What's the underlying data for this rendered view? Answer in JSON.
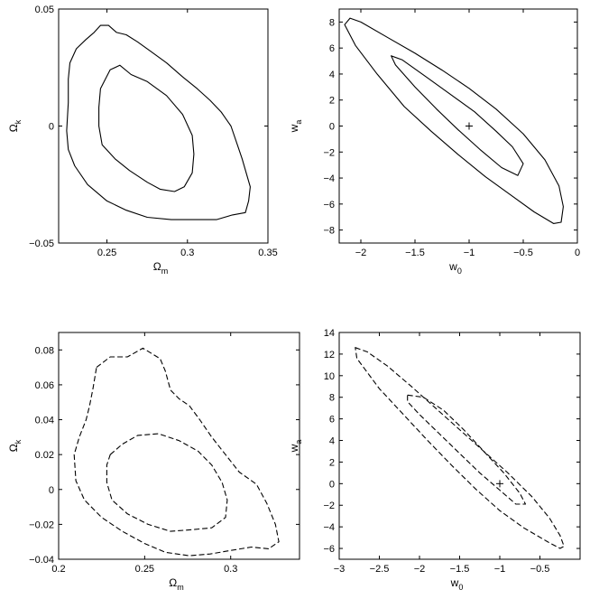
{
  "chart_data": [
    {
      "type": "contour",
      "xlabel": "Ω",
      "xlabel_sub": "m",
      "ylabel": "Ω",
      "ylabel_sub": "k",
      "xlim": [
        0.22,
        0.35
      ],
      "ylim": [
        -0.05,
        0.05
      ],
      "xticks": [
        0.25,
        0.3,
        0.35
      ],
      "xtick_labels": [
        "0.25",
        "0.3",
        "0.35"
      ],
      "yticks": [
        -0.05,
        0,
        0.05
      ],
      "ytick_labels": [
        "−0.05",
        "0",
        "0.05"
      ],
      "line_style": "solid",
      "contours": [
        {
          "level": "outer",
          "points": [
            [
              0.227,
              0.027
            ],
            [
              0.231,
              0.033
            ],
            [
              0.237,
              0.037
            ],
            [
              0.242,
              0.04
            ],
            [
              0.246,
              0.043
            ],
            [
              0.251,
              0.043
            ],
            [
              0.256,
              0.04
            ],
            [
              0.262,
              0.039
            ],
            [
              0.269,
              0.036
            ],
            [
              0.277,
              0.032
            ],
            [
              0.287,
              0.027
            ],
            [
              0.297,
              0.021
            ],
            [
              0.306,
              0.016
            ],
            [
              0.314,
              0.011
            ],
            [
              0.321,
              0.006
            ],
            [
              0.327,
              0.0
            ],
            [
              0.331,
              -0.008
            ],
            [
              0.334,
              -0.014
            ],
            [
              0.339,
              -0.026
            ],
            [
              0.338,
              -0.032
            ],
            [
              0.336,
              -0.037
            ],
            [
              0.328,
              -0.038
            ],
            [
              0.318,
              -0.04
            ],
            [
              0.305,
              -0.04
            ],
            [
              0.29,
              -0.04
            ],
            [
              0.275,
              -0.039
            ],
            [
              0.262,
              -0.036
            ],
            [
              0.25,
              -0.032
            ],
            [
              0.238,
              -0.025
            ],
            [
              0.23,
              -0.017
            ],
            [
              0.226,
              -0.01
            ],
            [
              0.225,
              -0.002
            ],
            [
              0.226,
              0.01
            ],
            [
              0.226,
              0.02
            ],
            [
              0.227,
              0.027
            ]
          ]
        },
        {
          "level": "inner",
          "points": [
            [
              0.246,
              0.016
            ],
            [
              0.252,
              0.024
            ],
            [
              0.258,
              0.026
            ],
            [
              0.265,
              0.022
            ],
            [
              0.275,
              0.019
            ],
            [
              0.287,
              0.013
            ],
            [
              0.297,
              0.005
            ],
            [
              0.303,
              -0.004
            ],
            [
              0.304,
              -0.012
            ],
            [
              0.303,
              -0.02
            ],
            [
              0.298,
              -0.026
            ],
            [
              0.292,
              -0.028
            ],
            [
              0.283,
              -0.027
            ],
            [
              0.275,
              -0.024
            ],
            [
              0.264,
              -0.019
            ],
            [
              0.255,
              -0.014
            ],
            [
              0.247,
              -0.008
            ],
            [
              0.245,
              0.0
            ],
            [
              0.245,
              0.008
            ],
            [
              0.246,
              0.016
            ]
          ]
        }
      ]
    },
    {
      "type": "contour",
      "xlabel": "w",
      "xlabel_sub": "0",
      "ylabel": "w",
      "ylabel_sub": "a",
      "xlim": [
        -2.2,
        0.0
      ],
      "ylim": [
        -9,
        9
      ],
      "xticks": [
        -2,
        -1.5,
        -1,
        -0.5,
        0
      ],
      "xtick_labels": [
        "−2",
        "−1.5",
        "−1",
        "−0.5",
        "0"
      ],
      "yticks": [
        -8,
        -6,
        -4,
        -2,
        0,
        2,
        4,
        6,
        8
      ],
      "ytick_labels": [
        "−8",
        "−6",
        "−4",
        "−2",
        "0",
        "2",
        "4",
        "6",
        "8"
      ],
      "line_style": "solid",
      "marker": {
        "symbol": "+",
        "x": -1,
        "y": 0
      },
      "contours": [
        {
          "level": "outer",
          "points": [
            [
              -2.1,
              8.3
            ],
            [
              -2.0,
              8.0
            ],
            [
              -1.75,
              6.8
            ],
            [
              -1.5,
              5.6
            ],
            [
              -1.25,
              4.3
            ],
            [
              -1.0,
              2.9
            ],
            [
              -0.75,
              1.3
            ],
            [
              -0.5,
              -0.6
            ],
            [
              -0.3,
              -2.6
            ],
            [
              -0.17,
              -4.6
            ],
            [
              -0.13,
              -6.2
            ],
            [
              -0.15,
              -7.4
            ],
            [
              -0.22,
              -7.5
            ],
            [
              -0.4,
              -6.6
            ],
            [
              -0.6,
              -5.4
            ],
            [
              -0.85,
              -3.9
            ],
            [
              -1.1,
              -2.2
            ],
            [
              -1.35,
              -0.4
            ],
            [
              -1.6,
              1.5
            ],
            [
              -1.85,
              4.0
            ],
            [
              -2.05,
              6.2
            ],
            [
              -2.15,
              7.8
            ],
            [
              -2.1,
              8.3
            ]
          ]
        },
        {
          "level": "inner",
          "points": [
            [
              -1.72,
              5.4
            ],
            [
              -1.62,
              5.1
            ],
            [
              -1.4,
              3.8
            ],
            [
              -1.2,
              2.6
            ],
            [
              -0.95,
              1.1
            ],
            [
              -0.75,
              -0.4
            ],
            [
              -0.6,
              -1.6
            ],
            [
              -0.5,
              -2.9
            ],
            [
              -0.55,
              -3.8
            ],
            [
              -0.7,
              -3.2
            ],
            [
              -0.9,
              -1.8
            ],
            [
              -1.1,
              -0.3
            ],
            [
              -1.3,
              1.3
            ],
            [
              -1.5,
              3.0
            ],
            [
              -1.68,
              4.7
            ],
            [
              -1.72,
              5.4
            ]
          ]
        }
      ]
    },
    {
      "type": "contour",
      "xlabel": "Ω",
      "xlabel_sub": "m",
      "ylabel": "Ω",
      "ylabel_sub": "k",
      "xlim": [
        0.2,
        0.34
      ],
      "ylim": [
        -0.04,
        0.09
      ],
      "xticks": [
        0.2,
        0.25,
        0.3
      ],
      "xtick_labels": [
        "0.2",
        "0.25",
        "0.3"
      ],
      "yticks": [
        -0.04,
        -0.02,
        0,
        0.02,
        0.04,
        0.06,
        0.08
      ],
      "ytick_labels": [
        "−0.04",
        "−0.02",
        "0",
        "0.02",
        "0.04",
        "0.06",
        "0.08"
      ],
      "line_style": "dashed",
      "contours": [
        {
          "level": "outer",
          "points": [
            [
              0.222,
              0.07
            ],
            [
              0.23,
              0.076
            ],
            [
              0.24,
              0.076
            ],
            [
              0.249,
              0.081
            ],
            [
              0.254,
              0.078
            ],
            [
              0.259,
              0.075
            ],
            [
              0.262,
              0.068
            ],
            [
              0.265,
              0.057
            ],
            [
              0.27,
              0.052
            ],
            [
              0.276,
              0.048
            ],
            [
              0.282,
              0.04
            ],
            [
              0.289,
              0.03
            ],
            [
              0.297,
              0.02
            ],
            [
              0.305,
              0.01
            ],
            [
              0.315,
              0.003
            ],
            [
              0.321,
              -0.008
            ],
            [
              0.326,
              -0.02
            ],
            [
              0.328,
              -0.03
            ],
            [
              0.322,
              -0.034
            ],
            [
              0.312,
              -0.033
            ],
            [
              0.3,
              -0.035
            ],
            [
              0.288,
              -0.037
            ],
            [
              0.276,
              -0.038
            ],
            [
              0.262,
              -0.036
            ],
            [
              0.25,
              -0.031
            ],
            [
              0.237,
              -0.024
            ],
            [
              0.225,
              -0.016
            ],
            [
              0.215,
              -0.006
            ],
            [
              0.21,
              0.005
            ],
            [
              0.209,
              0.02
            ],
            [
              0.212,
              0.03
            ],
            [
              0.216,
              0.04
            ],
            [
              0.218,
              0.048
            ],
            [
              0.22,
              0.058
            ],
            [
              0.222,
              0.07
            ]
          ]
        },
        {
          "level": "inner",
          "points": [
            [
              0.23,
              0.02
            ],
            [
              0.237,
              0.026
            ],
            [
              0.246,
              0.031
            ],
            [
              0.258,
              0.032
            ],
            [
              0.27,
              0.028
            ],
            [
              0.281,
              0.022
            ],
            [
              0.289,
              0.014
            ],
            [
              0.295,
              0.004
            ],
            [
              0.298,
              -0.006
            ],
            [
              0.297,
              -0.016
            ],
            [
              0.289,
              -0.022
            ],
            [
              0.278,
              -0.023
            ],
            [
              0.265,
              -0.024
            ],
            [
              0.252,
              -0.02
            ],
            [
              0.24,
              -0.014
            ],
            [
              0.231,
              -0.006
            ],
            [
              0.228,
              0.004
            ],
            [
              0.228,
              0.014
            ],
            [
              0.23,
              0.02
            ]
          ]
        }
      ]
    },
    {
      "type": "contour",
      "xlabel": "w",
      "xlabel_sub": "0",
      "ylabel": "w",
      "ylabel_sub": "a",
      "xlim": [
        -3.0,
        0.0
      ],
      "ylim": [
        -7,
        14
      ],
      "xticks": [
        -3,
        -2.5,
        -2,
        -1.5,
        -1,
        -0.5
      ],
      "xtick_labels": [
        "−3",
        "−2.5",
        "−2",
        "−1.5",
        "−1",
        "−0.5"
      ],
      "yticks": [
        -6,
        -4,
        -2,
        0,
        2,
        4,
        6,
        8,
        10,
        12,
        14
      ],
      "ytick_labels": [
        "−6",
        "−4",
        "−2",
        "0",
        "2",
        "4",
        "6",
        "8",
        "10",
        "12",
        "14"
      ],
      "line_style": "dashed",
      "marker": {
        "symbol": "+",
        "x": -1,
        "y": 0
      },
      "contours": [
        {
          "level": "outer",
          "points": [
            [
              -2.8,
              12.6
            ],
            [
              -2.65,
              12.2
            ],
            [
              -2.4,
              10.9
            ],
            [
              -2.1,
              9.0
            ],
            [
              -1.8,
              7.0
            ],
            [
              -1.5,
              5.0
            ],
            [
              -1.2,
              3.0
            ],
            [
              -0.9,
              1.0
            ],
            [
              -0.6,
              -1.2
            ],
            [
              -0.38,
              -3.2
            ],
            [
              -0.25,
              -4.8
            ],
            [
              -0.2,
              -5.8
            ],
            [
              -0.25,
              -6.0
            ],
            [
              -0.4,
              -5.4
            ],
            [
              -0.7,
              -4.1
            ],
            [
              -1.0,
              -2.5
            ],
            [
              -1.3,
              -0.5
            ],
            [
              -1.6,
              1.7
            ],
            [
              -1.9,
              4.0
            ],
            [
              -2.2,
              6.4
            ],
            [
              -2.5,
              8.8
            ],
            [
              -2.78,
              11.6
            ],
            [
              -2.8,
              12.6
            ]
          ]
        },
        {
          "level": "inner",
          "points": [
            [
              -2.15,
              8.2
            ],
            [
              -1.95,
              8.0
            ],
            [
              -1.7,
              6.8
            ],
            [
              -1.45,
              5.0
            ],
            [
              -1.2,
              3.0
            ],
            [
              -0.95,
              1.0
            ],
            [
              -0.75,
              -0.9
            ],
            [
              -0.68,
              -1.9
            ],
            [
              -0.8,
              -1.9
            ],
            [
              -1.0,
              -0.6
            ],
            [
              -1.25,
              1.0
            ],
            [
              -1.5,
              2.8
            ],
            [
              -1.75,
              4.6
            ],
            [
              -2.0,
              6.4
            ],
            [
              -2.15,
              7.6
            ],
            [
              -2.15,
              8.2
            ]
          ]
        }
      ]
    }
  ]
}
